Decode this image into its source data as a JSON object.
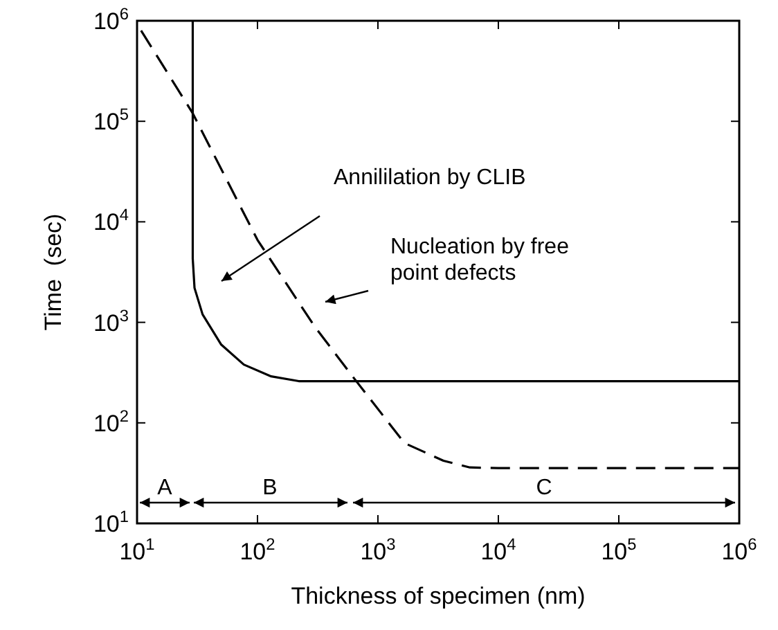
{
  "chart_data": {
    "type": "line",
    "xlabel": "Thickness of specimen (nm)",
    "ylabel": "Time  (sec)",
    "log": "xy",
    "grid": false,
    "marker": "none",
    "xlim": [
      10,
      1000000
    ],
    "ylim": [
      10,
      1000000
    ],
    "xticks": [
      {
        "value": 10,
        "label": "10$^{1}$"
      },
      {
        "value": 100,
        "label": "10$^{2}$"
      },
      {
        "value": 1000,
        "label": "10$^{3}$"
      },
      {
        "value": 10000,
        "label": "10$^{4}$"
      },
      {
        "value": 100000,
        "label": "10$^{5}$"
      },
      {
        "value": 1000000,
        "label": "10$^{6}$"
      }
    ],
    "yticks": [
      {
        "value": 10,
        "label": "10$^{1}$"
      },
      {
        "value": 100,
        "label": "10$^{2}$"
      },
      {
        "value": 1000,
        "label": "10$^{3}$"
      },
      {
        "value": 10000,
        "label": "10$^{4}$"
      },
      {
        "value": 100000,
        "label": "10$^{5}$"
      },
      {
        "value": 1000000,
        "label": "10$^{6}$"
      }
    ],
    "series": [
      {
        "color": "#000000",
        "line_style": "solid",
        "x": [
          29,
          29,
          30,
          35,
          50,
          77,
          130,
          220,
          1000000
        ],
        "values": [
          1000000,
          4300,
          2200,
          1200,
          600,
          380,
          290,
          260,
          260
        ]
      },
      {
        "color": "#000000",
        "line_style": "dashed",
        "x": [
          10.8,
          29,
          100,
          300,
          630,
          1660,
          3500,
          5800,
          10000,
          1000000
        ],
        "values": [
          800000,
          120000,
          6600,
          900,
          280,
          63,
          42,
          36,
          35.5,
          35.5
        ]
      }
    ],
    "annotations": [
      "Annililation by CLIB",
      "Nucleation by free\npoint defects",
      "A",
      "B",
      "C"
    ]
  }
}
